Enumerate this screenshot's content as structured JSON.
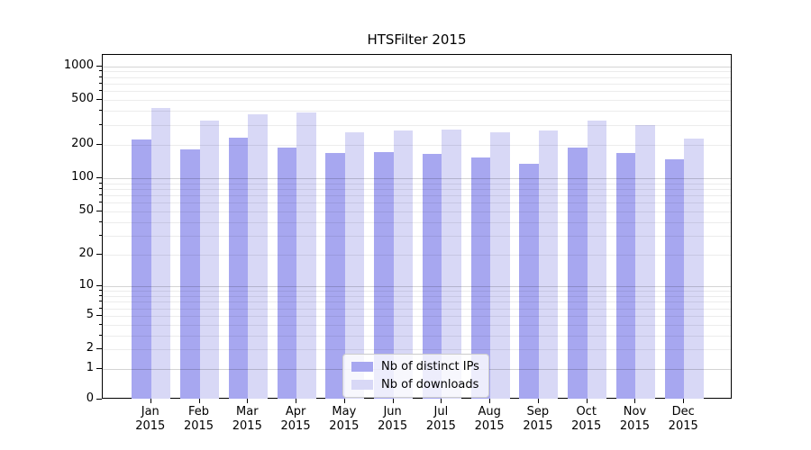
{
  "title": "HTSFilter 2015",
  "chart_data": {
    "type": "bar",
    "title": "HTSFilter 2015",
    "categories": [
      "Jan",
      "Feb",
      "Mar",
      "Apr",
      "May",
      "Jun",
      "Jul",
      "Aug",
      "Sep",
      "Oct",
      "Nov",
      "Dec"
    ],
    "year_label": "2015",
    "series": [
      {
        "name": "Nb of distinct IPs",
        "color": "#a7a7f0",
        "values": [
          220,
          180,
          230,
          188,
          168,
          172,
          165,
          153,
          135,
          188,
          168,
          147
        ]
      },
      {
        "name": "Nb of downloads",
        "color": "#d8d8f6",
        "values": [
          420,
          325,
          373,
          385,
          255,
          268,
          273,
          255,
          265,
          330,
          300,
          227
        ]
      }
    ],
    "xlabel": "",
    "ylabel": "",
    "yscale": "log1p",
    "yticks": [
      0,
      1,
      2,
      5,
      10,
      20,
      50,
      100,
      200,
      500,
      1000
    ],
    "major_grid_values": [
      1,
      10,
      100,
      1000
    ],
    "minor_grid_values": [
      2,
      3,
      4,
      5,
      6,
      7,
      8,
      9,
      20,
      30,
      40,
      50,
      60,
      70,
      80,
      90,
      200,
      300,
      400,
      500,
      600,
      700,
      800,
      900
    ],
    "ylim": [
      0,
      1250
    ],
    "grid": true,
    "legend_position": "lower center"
  }
}
